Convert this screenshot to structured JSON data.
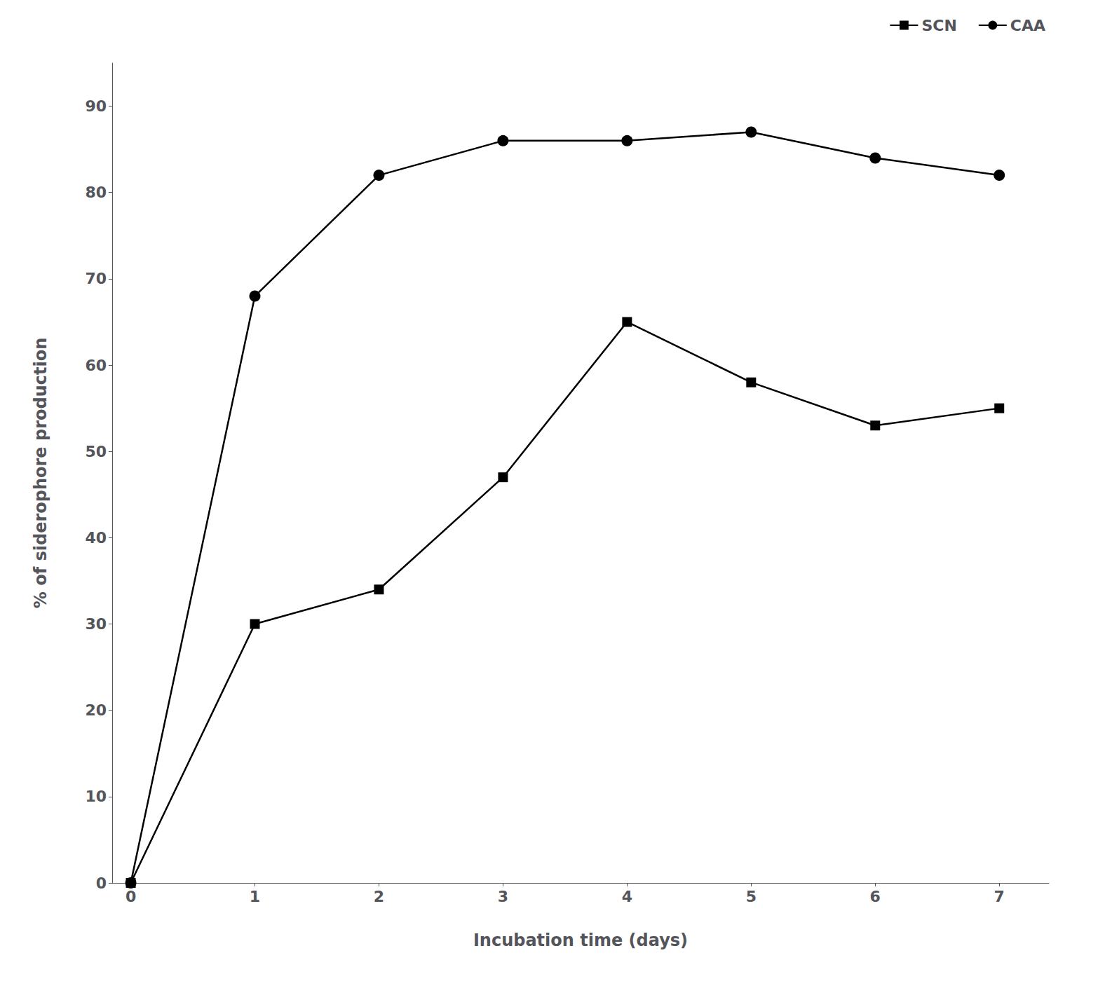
{
  "chart_data": {
    "type": "line",
    "xlabel": "Incubation time (days)",
    "ylabel": "% of siderophore production",
    "x": [
      0,
      1,
      2,
      3,
      4,
      5,
      6,
      7
    ],
    "series": [
      {
        "name": "SCN",
        "color": "#000000",
        "marker": "square",
        "values": [
          0,
          30,
          34,
          47,
          65,
          58,
          53,
          55
        ]
      },
      {
        "name": "CAA",
        "color": "#000000",
        "marker": "circle",
        "values": [
          0,
          68,
          82,
          86,
          86,
          87,
          84,
          82
        ]
      }
    ],
    "xlim": [
      -0.15,
      7.4
    ],
    "ylim": [
      0,
      95
    ],
    "xticks": [
      0,
      1,
      2,
      3,
      4,
      5,
      6,
      7
    ],
    "yticks": [
      0,
      10,
      20,
      30,
      40,
      50,
      60,
      70,
      80,
      90
    ],
    "grid": false,
    "legend": "upper right"
  }
}
